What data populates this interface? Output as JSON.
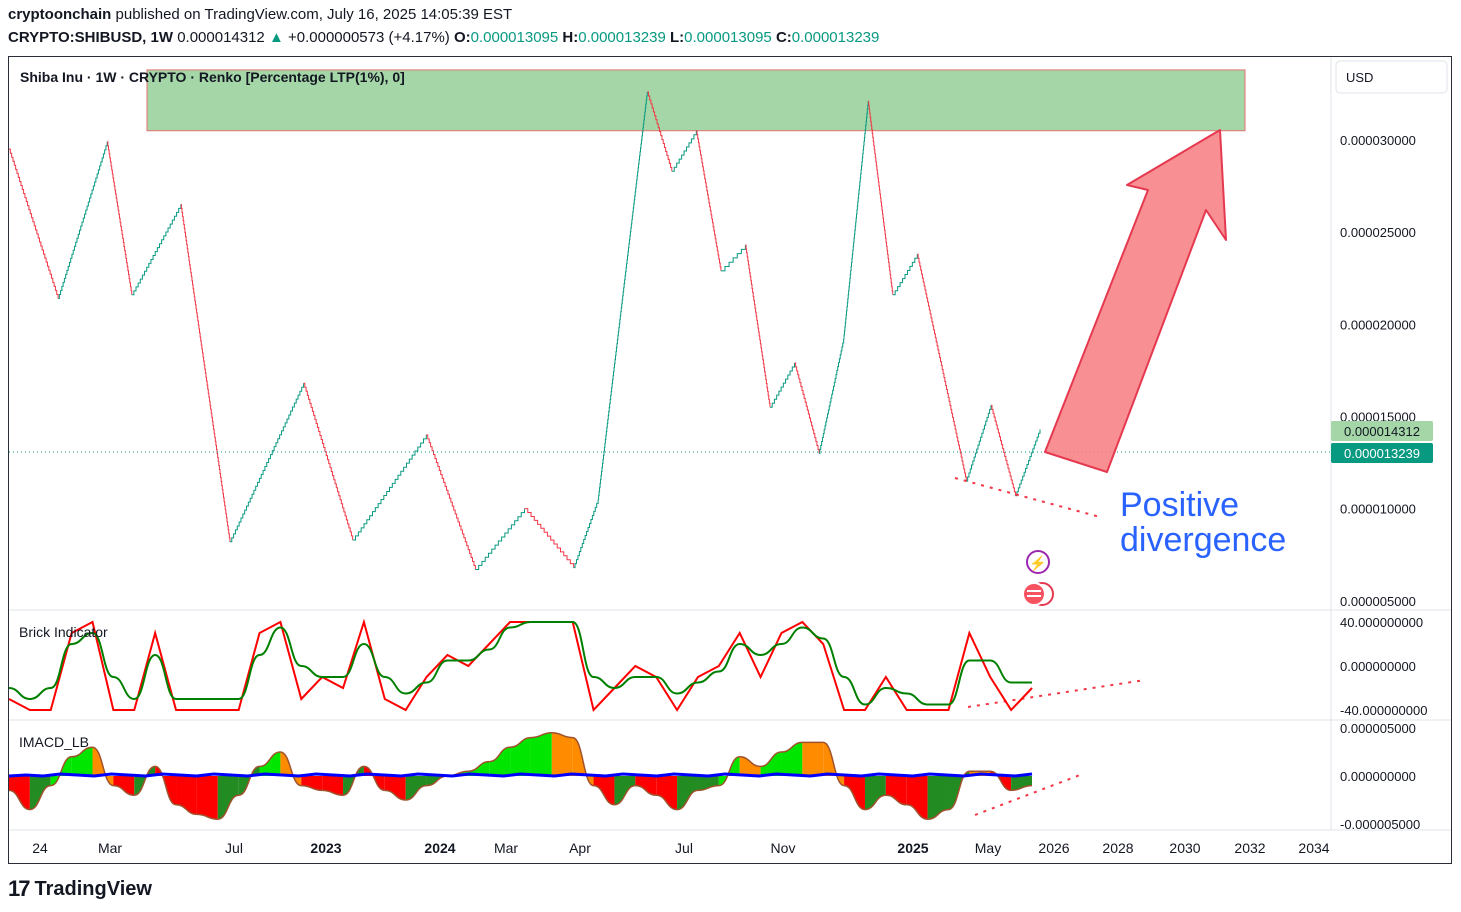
{
  "header": {
    "author": "cryptoonchain",
    "published": "published on TradingView.com, July 16, 2025 14:05:39 EST",
    "symbol": "CRYPTO:SHIBUSD, 1W",
    "price": "0.000014312",
    "change": "+0.000000573 (+4.17%)",
    "o_label": "O:",
    "o_value": "0.000013095",
    "h_label": "H:",
    "h_value": "0.000013239",
    "l_label": "L:",
    "l_value": "0.000013095",
    "c_label": "C:",
    "c_value": "0.000013239"
  },
  "legend": {
    "title": "Shiba Inu · 1W · CRYPTO · Renko [Percentage LTP(1%), 0]",
    "currency": "USD",
    "brick_indicator": "Brick Indicator",
    "imacd": "IMACD_LB"
  },
  "annotation": {
    "line1": "Positive",
    "line2": "divergence"
  },
  "price_badges": {
    "last": "0.000014312",
    "close": "0.000013239"
  },
  "colors": {
    "up": "#089981",
    "down": "#f23645",
    "zone": "#a5d6a7",
    "arrow": "#f77c80",
    "annotation": "#2962ff",
    "brick": "#ff0000",
    "brick_signal": "#008000",
    "macd_green": "#00e600",
    "macd_red": "#ff0000",
    "macd_darkgreen": "#228b22",
    "macd_orange": "#ff8c00",
    "signal_blue": "#0000ff"
  },
  "footer": {
    "brand": "TradingView"
  },
  "chart_data": [
    {
      "type": "line",
      "name": "Renko price",
      "x": [
        "2022-01",
        "2022-03",
        "2022-05",
        "2022-06",
        "2022-08",
        "2022-10",
        "2023-01",
        "2023-03",
        "2023-06",
        "2023-08",
        "2023-10",
        "2023-12",
        "2024-01",
        "2024-03",
        "2024-04",
        "2024-05",
        "2024-06",
        "2024-07",
        "2024-08",
        "2024-09",
        "2024-10",
        "2024-11",
        "2024-12",
        "2025-01",
        "2025-02",
        "2025-04",
        "2025-05",
        "2025-06",
        "2025-07"
      ],
      "y": [
        2.95e-05,
        2.14e-05,
        2.99e-05,
        2.16e-05,
        2.65e-05,
        8.2e-06,
        1.68e-05,
        8.3e-06,
        1.4e-05,
        6.7e-06,
        1e-05,
        6.8e-06,
        1.05e-05,
        3.26e-05,
        2.83e-05,
        3.05e-05,
        2.29e-05,
        2.43e-05,
        1.55e-05,
        1.79e-05,
        1.3e-05,
        1.92e-05,
        3.21e-05,
        2.16e-05,
        2.38e-05,
        1.15e-05,
        1.56e-05,
        1.07e-05,
        1.43e-05
      ],
      "ylim": [
        4.5e-06,
        3.45e-05
      ],
      "y_ticks": [
        "0.000030000",
        "0.000025000",
        "0.000020000",
        "0.000015000",
        "0.000010000",
        "0.000005000"
      ],
      "x_ticks": [
        "24",
        "Mar",
        "Jul",
        "2023",
        "2024",
        "Mar",
        "Apr",
        "Jul",
        "Nov",
        "2025",
        "May",
        "2026",
        "2028",
        "2030",
        "2032",
        "2034"
      ],
      "resistance_zone": [
        3.05e-05,
        3.38e-05
      ]
    },
    {
      "type": "line",
      "name": "Brick Indicator",
      "ylim": [
        -40,
        40
      ],
      "y_ticks": [
        "40.000000000",
        "0.000000000",
        "-40.000000000"
      ],
      "values": [
        -30,
        -40,
        -40,
        30,
        40,
        -40,
        -40,
        30,
        -40,
        -40,
        -40,
        -40,
        30,
        40,
        -30,
        -10,
        -20,
        40,
        -30,
        -40,
        -10,
        10,
        0,
        20,
        40,
        40,
        40,
        40,
        -40,
        -20,
        0,
        -10,
        -40,
        -10,
        0,
        30,
        -10,
        30,
        40,
        20,
        -40,
        -40,
        -10,
        -40,
        -40,
        -40,
        30,
        -10,
        -40,
        -20
      ],
      "signal": [
        -20,
        -30,
        -20,
        20,
        30,
        -10,
        -30,
        10,
        -30,
        -30,
        -30,
        -30,
        10,
        35,
        0,
        -10,
        -10,
        20,
        -10,
        -25,
        -15,
        5,
        5,
        15,
        35,
        40,
        40,
        40,
        -10,
        -20,
        -10,
        -10,
        -25,
        -15,
        -5,
        20,
        10,
        20,
        35,
        25,
        -10,
        -35,
        -20,
        -25,
        -35,
        -35,
        5,
        5,
        -15,
        -15
      ]
    },
    {
      "type": "area",
      "name": "IMACD_LB",
      "ylim": [
        -5e-06,
        5e-06
      ],
      "y_ticks": [
        "0.000005000",
        "0.000000000",
        "-0.000005000"
      ],
      "values": [
        -1.5,
        -3.5,
        -1,
        2,
        3,
        -1,
        -2,
        1,
        -3,
        -4,
        -4.5,
        -2,
        1,
        2.5,
        -1,
        -1.5,
        -2,
        1,
        -1.5,
        -2.5,
        -1,
        0,
        0.5,
        1.5,
        3,
        4,
        4.5,
        4,
        -1,
        -3,
        -1,
        -2,
        -3.5,
        -1.5,
        -1,
        2,
        1,
        2.5,
        3.5,
        3.5,
        -1,
        -3.5,
        -2,
        -3,
        -4.5,
        -3.5,
        0.5,
        0.5,
        -1.5,
        -1
      ]
    }
  ]
}
